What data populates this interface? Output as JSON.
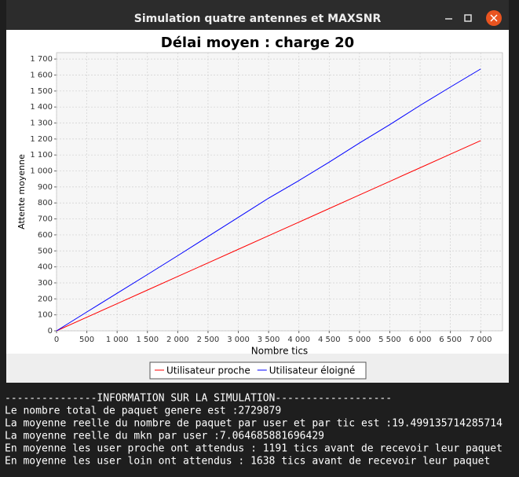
{
  "window": {
    "title": "Simulation quatre antennes et MAXSNR"
  },
  "chart_data": {
    "type": "line",
    "title": "Délai moyen : charge 20",
    "x_label": "Nombre tics",
    "y_label": "Attente moyenne",
    "x": [
      0,
      500,
      1000,
      1500,
      2000,
      2500,
      3000,
      3500,
      4000,
      4500,
      5000,
      5500,
      6000,
      6500,
      7000
    ],
    "series": [
      {
        "name": "Utilisateur proche",
        "color": "#ff0000",
        "values": [
          0,
          85,
          170,
          255,
          340,
          425,
          510,
          595,
          680,
          765,
          850,
          935,
          1020,
          1105,
          1190
        ]
      },
      {
        "name": "Utilisateur éloigné",
        "color": "#0000ff",
        "values": [
          0,
          118,
          235,
          352,
          470,
          590,
          710,
          830,
          940,
          1055,
          1175,
          1290,
          1410,
          1525,
          1638
        ]
      }
    ],
    "xlim": [
      0,
      7360
    ],
    "ylim": [
      0,
      1740
    ],
    "xticks": [
      0,
      500,
      {
        "value": 1000,
        "label": "1 000"
      },
      {
        "value": 1500,
        "label": "1 500"
      },
      {
        "value": 2000,
        "label": "2 000"
      },
      {
        "value": 2500,
        "label": "2 500"
      },
      {
        "value": 3000,
        "label": "3 000"
      },
      {
        "value": 3500,
        "label": "3 500"
      },
      {
        "value": 4000,
        "label": "4 000"
      },
      {
        "value": 4500,
        "label": "4 500"
      },
      {
        "value": 5000,
        "label": "5 000"
      },
      {
        "value": 5500,
        "label": "5 500"
      },
      {
        "value": 6000,
        "label": "6 000"
      },
      {
        "value": 6500,
        "label": "6 500"
      },
      {
        "value": 7000,
        "label": "7 000"
      }
    ],
    "yticks": [
      0,
      100,
      200,
      300,
      400,
      500,
      600,
      700,
      800,
      900,
      {
        "value": 1000,
        "label": "1 000"
      },
      {
        "value": 1100,
        "label": "1 100"
      },
      {
        "value": 1200,
        "label": "1 200"
      },
      {
        "value": 1300,
        "label": "1 300"
      },
      {
        "value": 1400,
        "label": "1 400"
      },
      {
        "value": 1500,
        "label": "1 500"
      },
      {
        "value": 1600,
        "label": "1 600"
      },
      {
        "value": 1700,
        "label": "1 700"
      }
    ],
    "grid": true,
    "legend": "bottom"
  },
  "console": {
    "lines": [
      "---------------INFORMATION SUR LA SIMULATION-------------------",
      "Le nombre total de paquet genere est :2729879",
      "La moyenne reelle du nombre de paquet par user et par tic est :19.499135714285714",
      "La moyenne reelle du mkn par user :7.064685881696429",
      "En moyenne les user proche ont attendus : 1191 tics avant de recevoir leur paquet",
      "En moyenne les user loin ont attendus : 1638 tics avant de recevoir leur paquet"
    ]
  }
}
